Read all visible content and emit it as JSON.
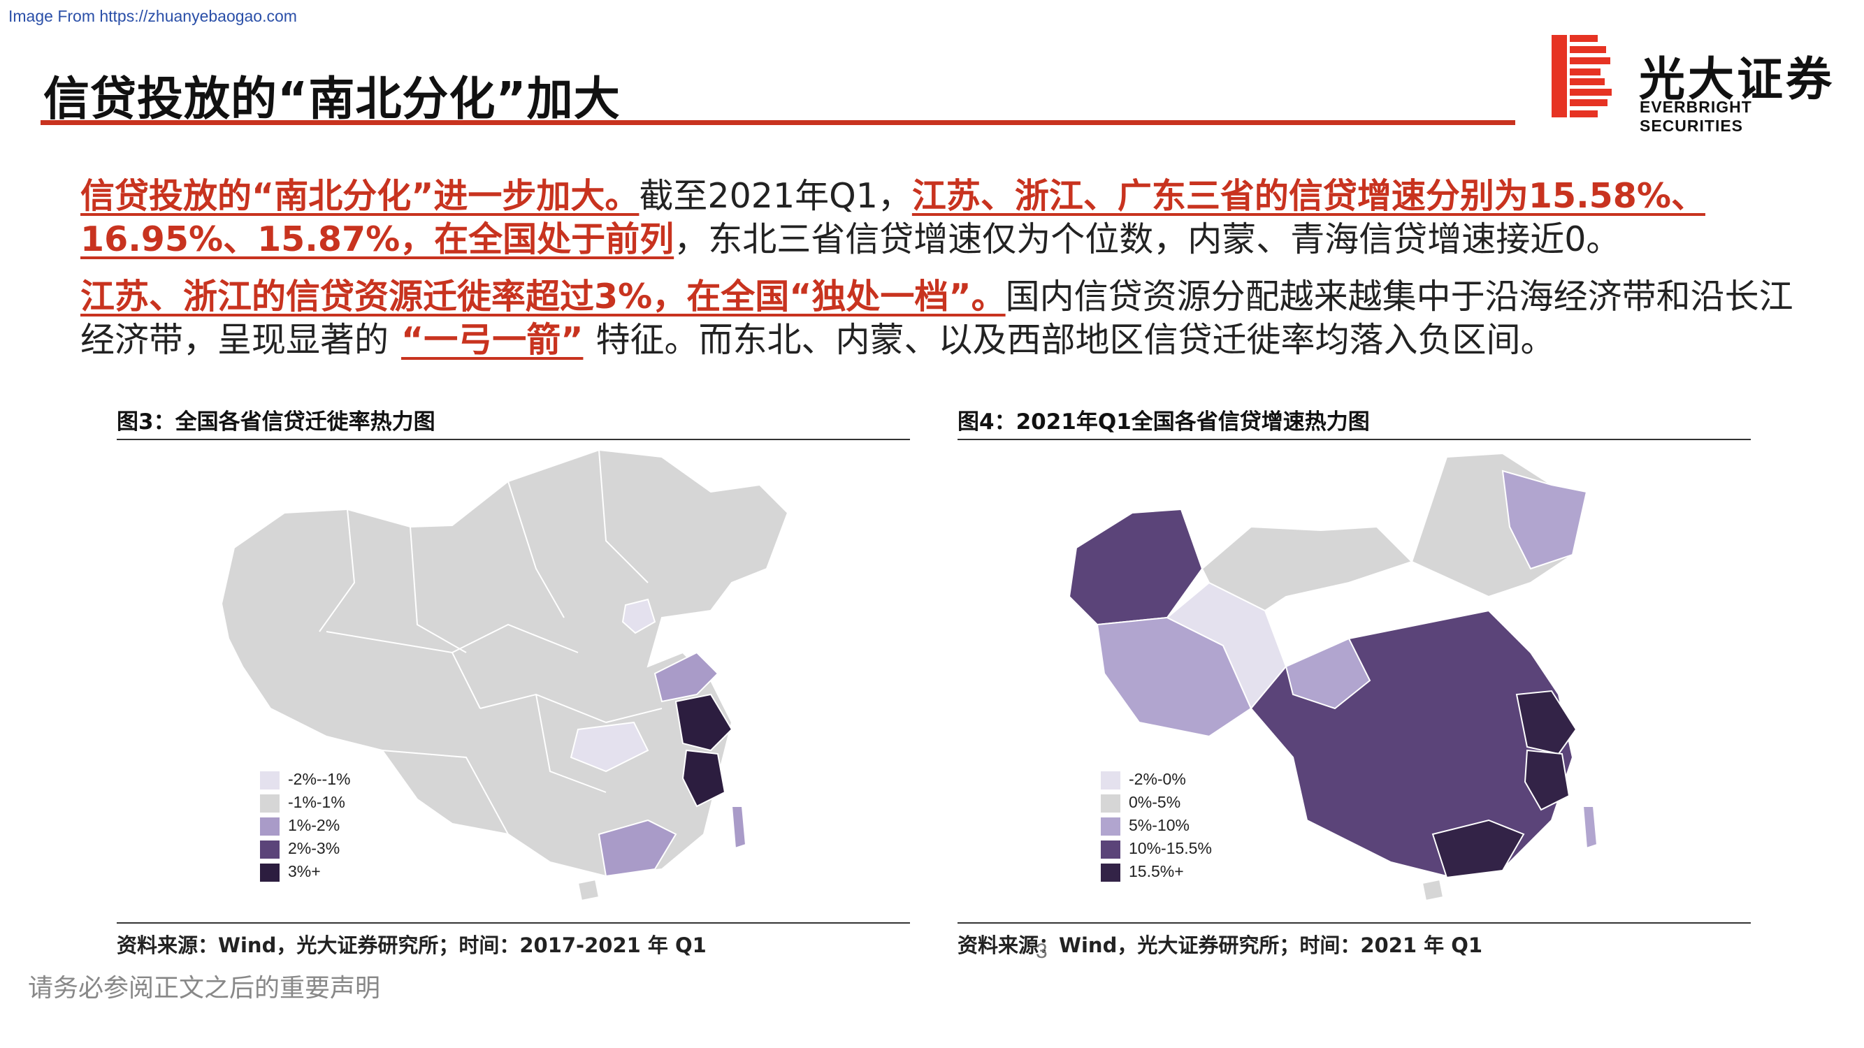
{
  "watermark": "Image From https://zhuanyebaogao.com",
  "title": "信贷投放的“南北分化”加大",
  "brand": {
    "name_cn": "光大证券",
    "name_en": "EVERBRIGHT SECURITIES",
    "accent_color": "#c8331f"
  },
  "paragraphs": [
    {
      "h1": "信贷投放的“南北分化”进一步加大。",
      "t1": "截至2021年Q1，",
      "h2": "江苏、浙江、广东三省的信贷增速分别为15.58%、16.95%、15.87%，在全国处于前列",
      "t2": "，东北三省信贷增速仅为个位数，内蒙、青海信贷增速接近0。"
    },
    {
      "h1": "江苏、浙江的信贷资源迁徙率超过3%，在全国“独处一档”。",
      "t1": "国内信贷资源分配越来越集中于沿海经济带和沿长江经济带，呈现显著的",
      "h2": "“一弓一箭”",
      "t2": "特征。而东北、内蒙、以及西部地区信贷迁徙率均落入负区间。"
    }
  ],
  "figures": [
    {
      "caption": "图3：全国各省信贷迁徙率热力图",
      "source": "资料来源：Wind，光大证券研究所；时间：2017-2021 年 Q1",
      "legend": [
        {
          "label": "-2%--1%",
          "color": "#e4e1ee"
        },
        {
          "label": "-1%-1%",
          "color": "#d6d6d6"
        },
        {
          "label": "1%-2%",
          "color": "#a99bc8"
        },
        {
          "label": "2%-3%",
          "color": "#5b4479"
        },
        {
          "label": "3%+",
          "color": "#2c1d3f"
        }
      ]
    },
    {
      "caption": "图4：2021年Q1全国各省信贷增速热力图",
      "source": "资料来源：Wind，光大证券研究所；时间：2021 年 Q1",
      "legend": [
        {
          "label": "-2%-0%",
          "color": "#e4e1ee"
        },
        {
          "label": "0%-5%",
          "color": "#d6d6d6"
        },
        {
          "label": "5%-10%",
          "color": "#b1a5cf"
        },
        {
          "label": "10%-15.5%",
          "color": "#5b4479"
        },
        {
          "label": "15.5%+",
          "color": "#332347"
        }
      ]
    }
  ],
  "footer": {
    "disclaimer": "请务必参阅正文之后的重要声明",
    "page_number": "3"
  }
}
